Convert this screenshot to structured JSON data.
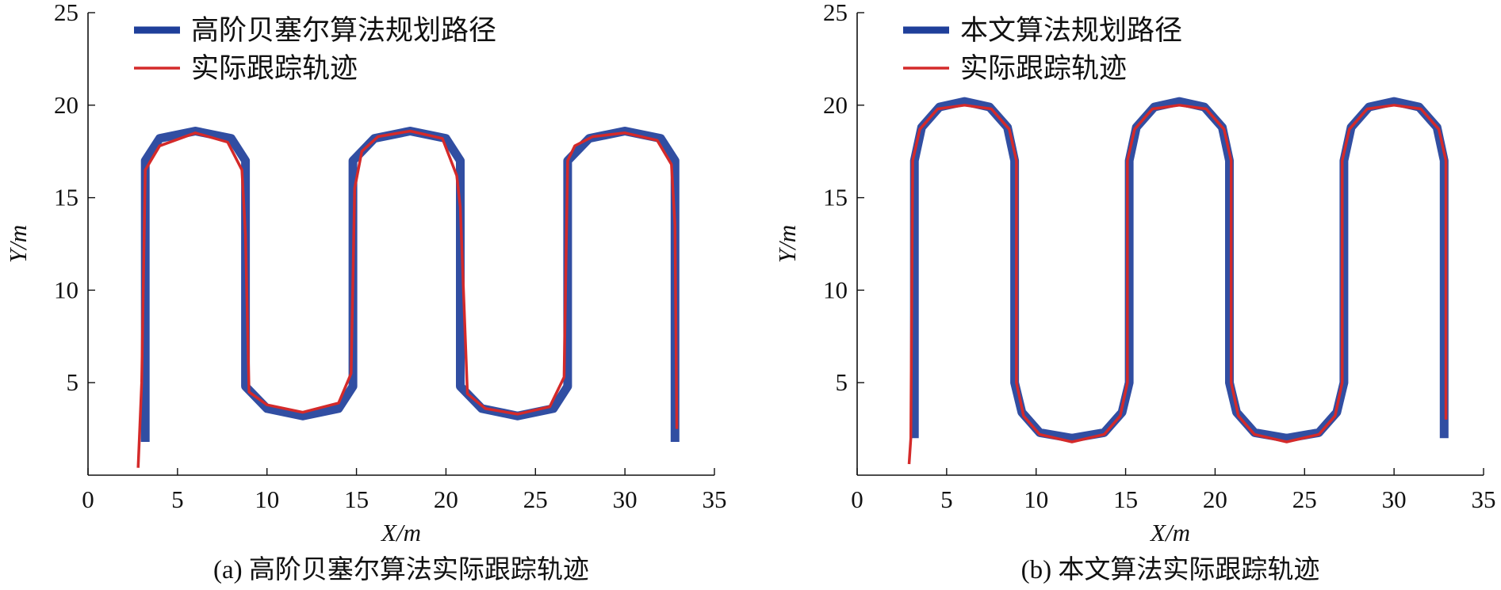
{
  "chart_data": [
    {
      "type": "line",
      "caption": "(a) 高阶贝塞尔算法实际跟踪轨迹",
      "xlabel": "X/m",
      "ylabel": "Y/m",
      "xlim": [
        0,
        35
      ],
      "ylim": [
        0,
        25
      ],
      "xticks": [
        "0",
        "5",
        "10",
        "15",
        "20",
        "25",
        "30",
        "35"
      ],
      "yticks": [
        "5",
        "10",
        "15",
        "20",
        "25"
      ],
      "legend_position": "top-left",
      "series": [
        {
          "name": "高阶贝塞尔算法规划路径",
          "color": "#1f3f9a",
          "x": [
            3.2,
            3.2,
            4.0,
            6.0,
            8.0,
            8.8,
            8.8,
            10.0,
            12.0,
            14.0,
            14.8,
            14.8,
            16.0,
            18.0,
            20.0,
            20.8,
            20.8,
            22.0,
            24.0,
            26.0,
            26.8,
            26.8,
            28.0,
            30.0,
            32.0,
            32.8,
            32.8
          ],
          "y": [
            1.8,
            17.0,
            18.2,
            18.6,
            18.2,
            17.0,
            4.8,
            3.6,
            3.2,
            3.6,
            4.8,
            17.0,
            18.2,
            18.6,
            18.2,
            17.0,
            4.8,
            3.6,
            3.2,
            3.6,
            4.8,
            17.0,
            18.2,
            18.6,
            18.2,
            17.0,
            1.8
          ]
        },
        {
          "name": "实际跟踪轨迹",
          "color": "#d42a2a",
          "x": [
            2.8,
            3.0,
            3.2,
            4.0,
            6.0,
            7.8,
            8.6,
            8.8,
            9.0,
            10.0,
            12.0,
            14.0,
            14.7,
            14.9,
            15.3,
            16.2,
            18.0,
            19.8,
            20.6,
            20.8,
            21.2,
            22.2,
            24.0,
            25.8,
            26.6,
            26.8,
            27.2,
            28.2,
            30.0,
            31.8,
            32.6,
            32.8,
            32.9
          ],
          "y": [
            0.4,
            5.0,
            16.5,
            17.8,
            18.5,
            18.0,
            16.5,
            13.0,
            4.5,
            3.8,
            3.4,
            3.9,
            5.5,
            15.5,
            17.5,
            18.3,
            18.6,
            18.2,
            16.2,
            14.5,
            4.4,
            3.6,
            3.3,
            3.7,
            5.3,
            17.0,
            17.8,
            18.3,
            18.5,
            18.1,
            16.8,
            13.5,
            2.5
          ]
        }
      ]
    },
    {
      "type": "line",
      "caption": "(b) 本文算法实际跟踪轨迹",
      "xlabel": "X/m",
      "ylabel": "Y/m",
      "xlim": [
        0,
        35
      ],
      "ylim": [
        0,
        25
      ],
      "xticks": [
        "0",
        "5",
        "10",
        "15",
        "20",
        "25",
        "30",
        "35"
      ],
      "yticks": [
        "5",
        "10",
        "15",
        "20",
        "25"
      ],
      "legend_position": "top-left",
      "series": [
        {
          "name": "本文算法规划路径",
          "color": "#1f3f9a",
          "x": [
            3.2,
            3.2,
            3.6,
            4.6,
            6.0,
            7.4,
            8.4,
            8.8,
            8.8,
            9.2,
            10.2,
            12.0,
            13.8,
            14.8,
            15.2,
            15.2,
            15.6,
            16.6,
            18.0,
            19.4,
            20.4,
            20.8,
            20.8,
            21.2,
            22.2,
            24.0,
            25.8,
            26.8,
            27.2,
            27.2,
            27.6,
            28.6,
            30.0,
            31.4,
            32.4,
            32.8,
            32.8
          ],
          "y": [
            2.0,
            17.0,
            18.8,
            19.9,
            20.2,
            19.9,
            18.8,
            17.0,
            5.0,
            3.4,
            2.3,
            2.0,
            2.3,
            3.4,
            5.0,
            17.0,
            18.8,
            19.9,
            20.2,
            19.9,
            18.8,
            17.0,
            5.0,
            3.4,
            2.3,
            2.0,
            2.3,
            3.4,
            5.0,
            17.0,
            18.8,
            19.9,
            20.2,
            19.9,
            18.8,
            17.0,
            2.0
          ]
        },
        {
          "name": "实际跟踪轨迹",
          "color": "#d42a2a",
          "x": [
            2.9,
            3.0,
            3.1,
            3.5,
            4.5,
            6.0,
            7.5,
            8.5,
            8.9,
            8.9,
            9.3,
            10.2,
            12.0,
            13.8,
            14.7,
            15.1,
            15.1,
            15.5,
            16.5,
            18.0,
            19.5,
            20.5,
            20.9,
            20.9,
            21.3,
            22.2,
            24.0,
            25.8,
            26.7,
            27.1,
            27.1,
            27.5,
            28.5,
            30.0,
            31.5,
            32.5,
            32.9,
            32.9
          ],
          "y": [
            0.6,
            2.0,
            17.0,
            18.7,
            19.8,
            20.0,
            19.8,
            18.7,
            17.0,
            5.0,
            3.2,
            2.2,
            1.8,
            2.2,
            3.2,
            5.0,
            17.0,
            18.7,
            19.8,
            20.0,
            19.8,
            18.7,
            17.0,
            5.0,
            3.2,
            2.2,
            1.8,
            2.2,
            3.2,
            5.0,
            17.0,
            18.7,
            19.8,
            20.0,
            19.8,
            18.7,
            17.0,
            3.0
          ]
        }
      ]
    }
  ]
}
